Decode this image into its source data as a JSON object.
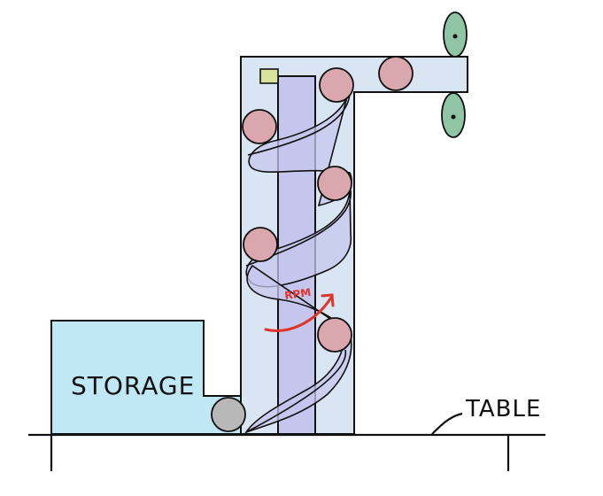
{
  "labels": {
    "storage": "STORAGE",
    "table": "TABLE",
    "rpm": "RPM"
  },
  "colors": {
    "storage_fill": "#bfe8f4",
    "tower_fill": "#d9e5f2",
    "screw_fill": "#c4c6ee",
    "ball_fill": "#d9a7ad",
    "grey_ball_fill": "#b8b8b8",
    "wheel_fill": "#8fc4a4",
    "indicator_fill": "#d7e29a",
    "rpm_arrow": "#e0332a",
    "outline": "#111111"
  },
  "icons": {
    "wheels": "pinwheel-wheel-icon",
    "arrow": "rotation-arrow-icon"
  }
}
